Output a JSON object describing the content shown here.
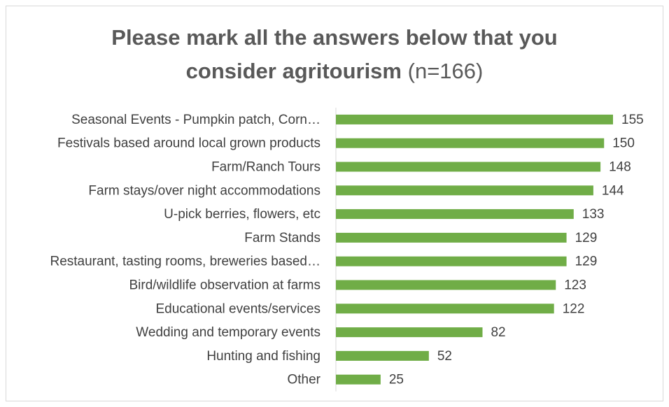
{
  "chart_data": {
    "type": "bar",
    "orientation": "horizontal",
    "title_line1": "Please mark all the answers below that you",
    "title_line2_bold": "consider agritourism",
    "title_line2_note": "(n=166)",
    "xlabel": "",
    "ylabel": "",
    "xlim": [
      0,
      160
    ],
    "grid": false,
    "legend": "none",
    "bar_color": "#70ad47",
    "categories": [
      "Seasonal Events - Pumpkin patch, Corn…",
      "Festivals based around local grown products",
      "Farm/Ranch Tours",
      "Farm stays/over night accommodations",
      "U-pick berries, flowers, etc",
      "Farm Stands",
      "Restaurant, tasting rooms, breweries based…",
      "Bird/wildlife observation at farms",
      "Educational events/services",
      "Wedding and temporary events",
      "Hunting and fishing",
      "Other"
    ],
    "values": [
      155,
      150,
      148,
      144,
      133,
      129,
      129,
      123,
      122,
      82,
      52,
      25
    ]
  }
}
